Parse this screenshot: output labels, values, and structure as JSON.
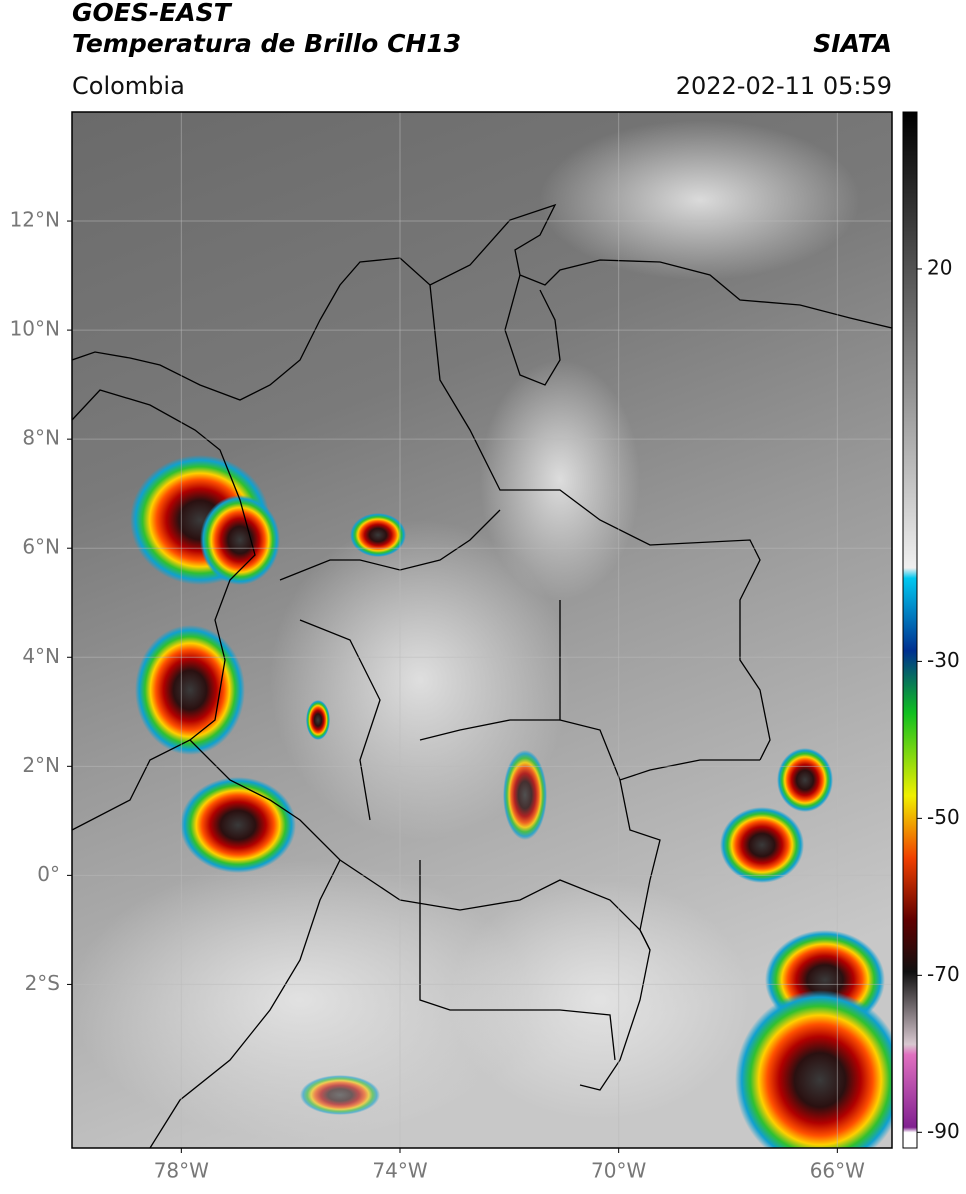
{
  "header": {
    "title": "GOES-EAST",
    "subtitle": "Temperatura de Brillo CH13",
    "source": "SIATA",
    "region": "Colombia",
    "datetime": "2022-02-11 05:59"
  },
  "map": {
    "lonlim": [
      -80,
      -65
    ],
    "latlim": [
      -5,
      14
    ],
    "lat_ticks": [
      {
        "value": 12,
        "label": "12°N"
      },
      {
        "value": 10,
        "label": "10°N"
      },
      {
        "value": 8,
        "label": "8°N"
      },
      {
        "value": 6,
        "label": "6°N"
      },
      {
        "value": 4,
        "label": "4°N"
      },
      {
        "value": 2,
        "label": "2°N"
      },
      {
        "value": 0,
        "label": "0°"
      },
      {
        "value": -2,
        "label": "2°S"
      }
    ],
    "lon_ticks": [
      {
        "value": -78,
        "label": "78°W"
      },
      {
        "value": -74,
        "label": "74°W"
      },
      {
        "value": -70,
        "label": "70°W"
      },
      {
        "value": -66,
        "label": "66°W"
      }
    ]
  },
  "colorbar": {
    "clim": [
      -92,
      40
    ],
    "ticks": [
      20,
      -30,
      -50,
      -70,
      -90
    ]
  }
}
